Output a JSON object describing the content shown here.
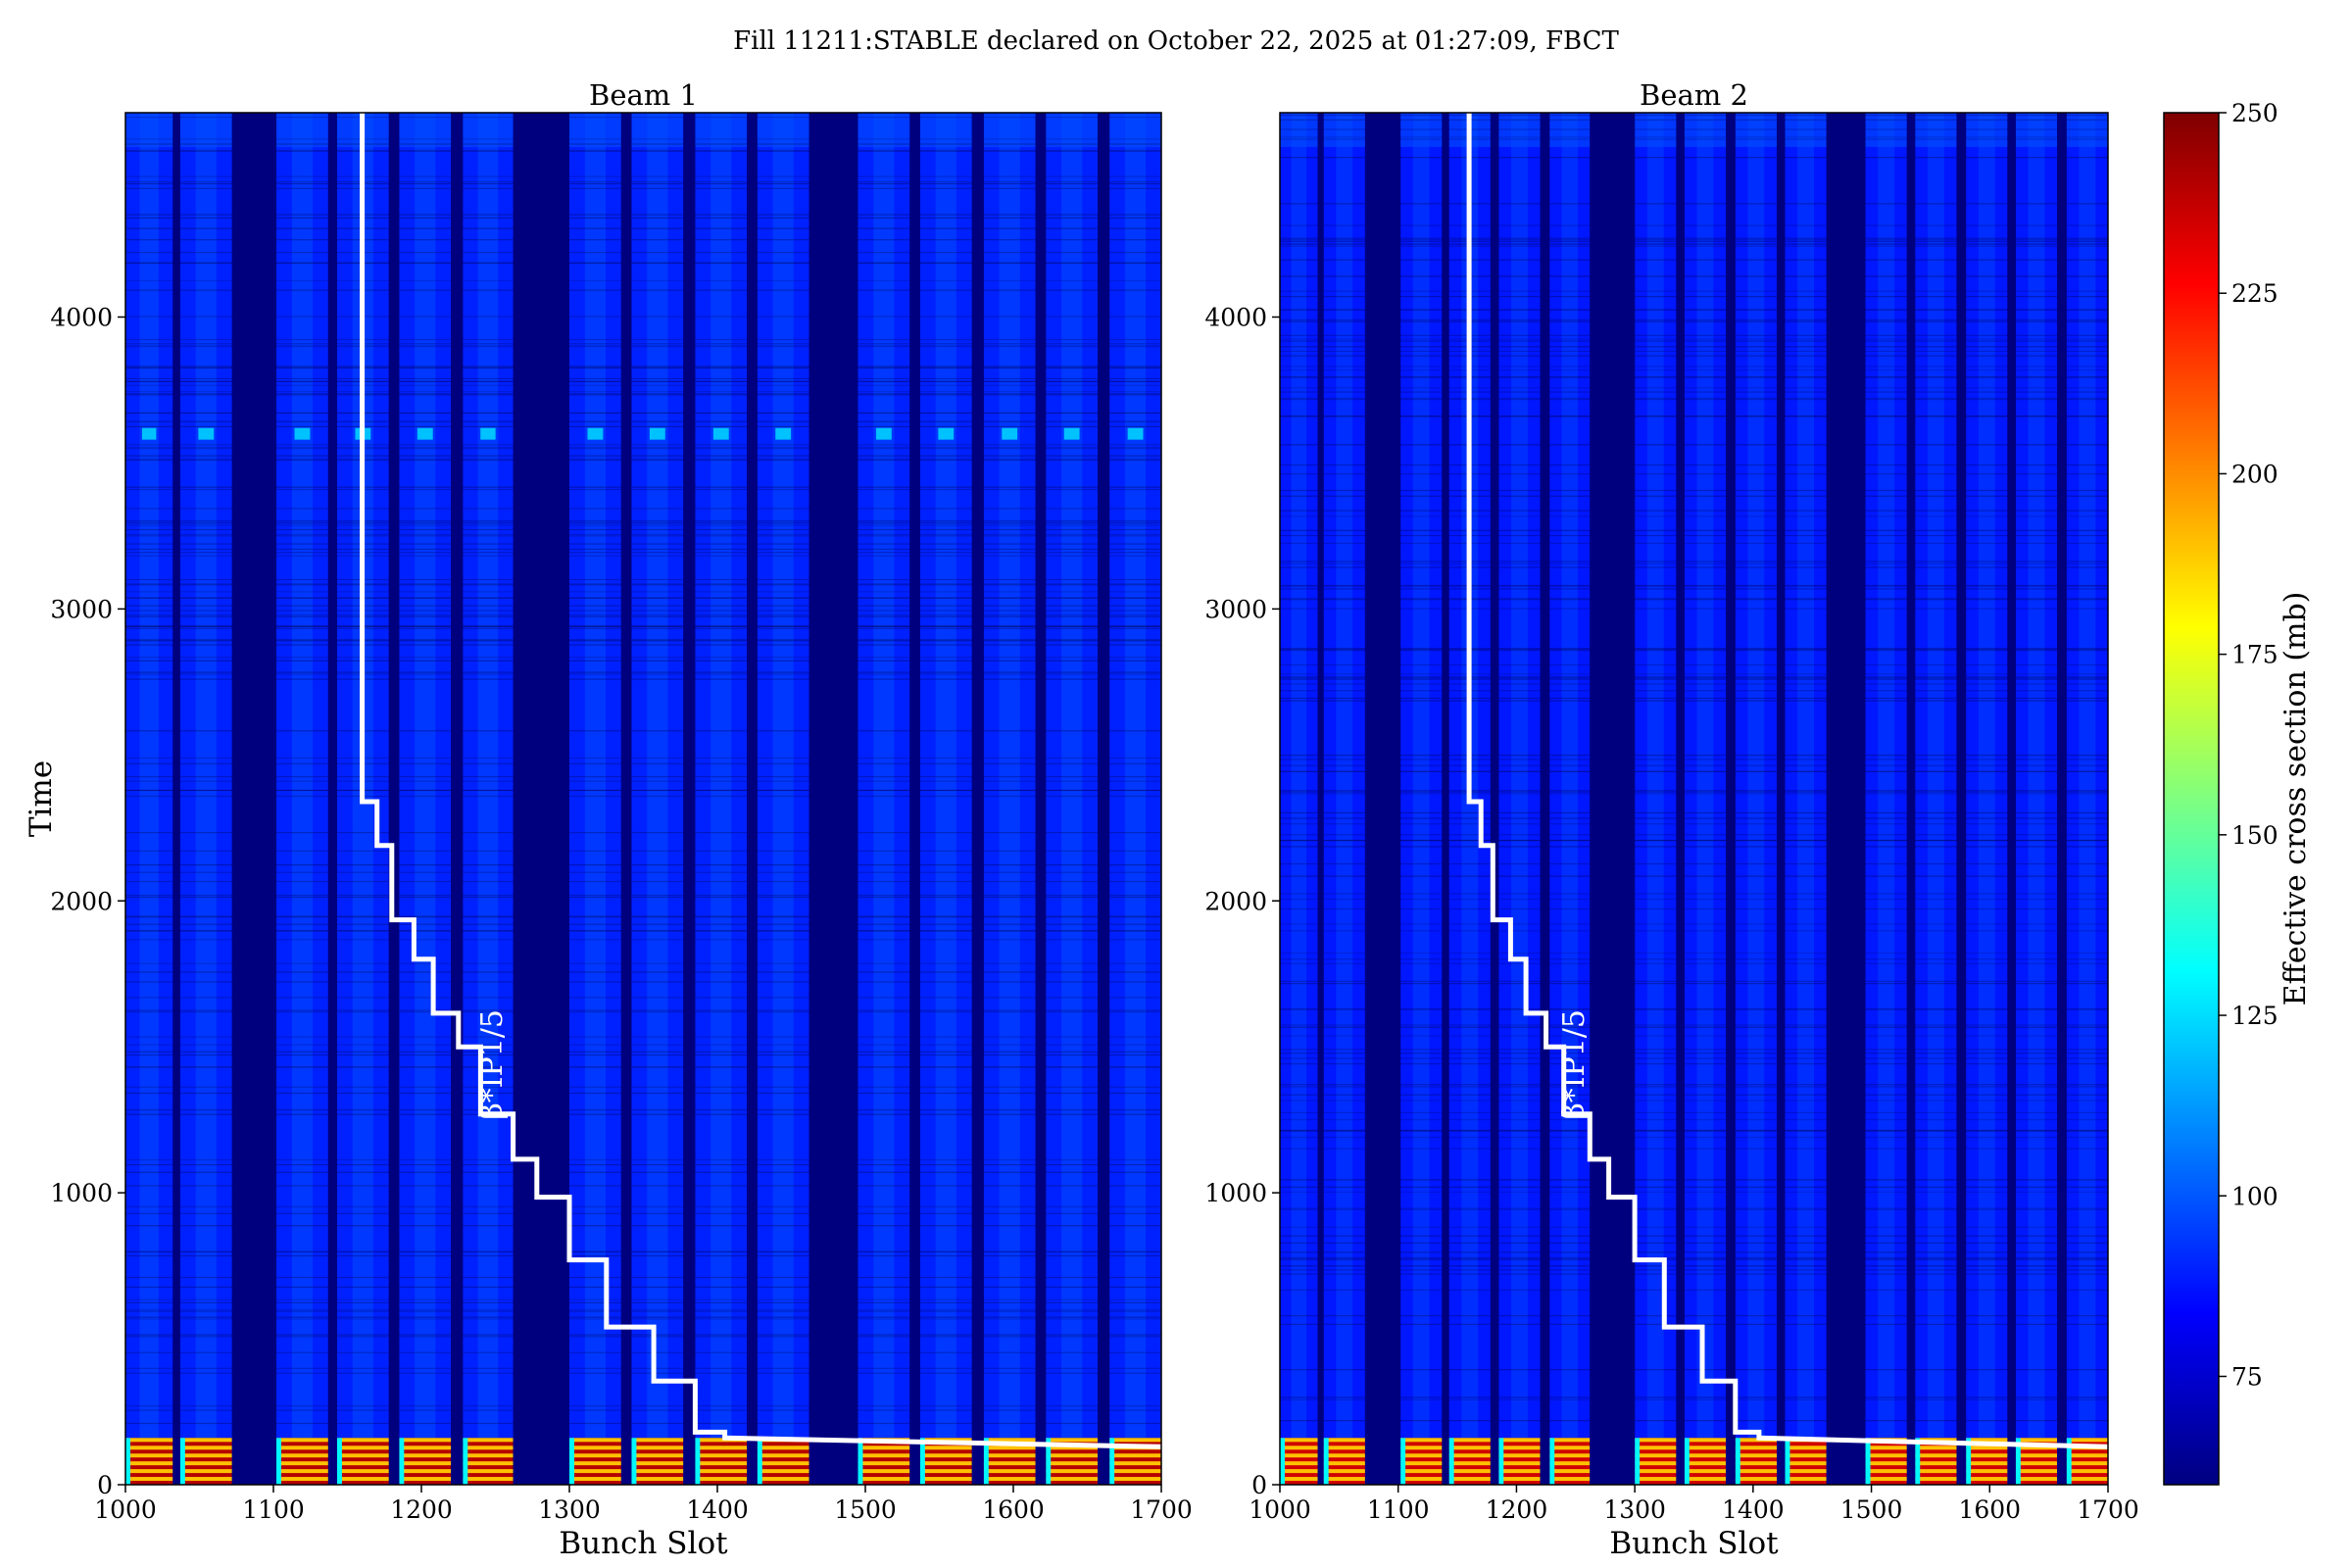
{
  "suptitle": "Fill 11211:STABLE declared on October 22, 2025 at 01:27:09, FBCT",
  "colorbar": {
    "label": "Effective cross section (mb)",
    "ticks": [
      75,
      100,
      125,
      150,
      175,
      200,
      225,
      250
    ],
    "range": [
      60,
      250
    ],
    "colormap": [
      "#00007f",
      "#0000ff",
      "#007fff",
      "#00ffff",
      "#7fff7f",
      "#ffff00",
      "#ff7f00",
      "#ff0000",
      "#7f0000"
    ]
  },
  "chart_data": [
    {
      "type": "heatmap",
      "title": "Beam 1",
      "xlabel": "Bunch Slot",
      "ylabel": "Time",
      "xlim": [
        1000,
        1700
      ],
      "ylim": [
        0,
        4700
      ],
      "xticks": [
        1000,
        1100,
        1200,
        1300,
        1400,
        1500,
        1600,
        1700
      ],
      "yticks": [
        0,
        1000,
        2000,
        3000,
        4000
      ],
      "filled_trains": [
        [
          1000,
          1032
        ],
        [
          1037,
          1072
        ],
        [
          1102,
          1137
        ],
        [
          1143,
          1178
        ],
        [
          1185,
          1220
        ],
        [
          1228,
          1262
        ],
        [
          1300,
          1335
        ],
        [
          1342,
          1377
        ],
        [
          1385,
          1420
        ],
        [
          1427,
          1462
        ],
        [
          1495,
          1530
        ],
        [
          1537,
          1572
        ],
        [
          1580,
          1615
        ],
        [
          1622,
          1657
        ],
        [
          1665,
          1700
        ]
      ],
      "empty_background_mb": 60,
      "stable_level_mb": 90,
      "bright_band_time": [
        3580,
        3620
      ],
      "early_high_mb": 240,
      "early_high_time_end": 160,
      "overlay_label": "β*IP1/5",
      "overlay_line": {
        "x": [
          1160,
          1160,
          1170,
          1170,
          1180,
          1180,
          1195,
          1195,
          1208,
          1208,
          1225,
          1225,
          1240,
          1240,
          1262,
          1262,
          1278,
          1278,
          1300,
          1300,
          1325,
          1325,
          1357,
          1357,
          1385,
          1385,
          1405,
          1405,
          1700
        ],
        "y": [
          4700,
          2340,
          2340,
          2190,
          2190,
          1935,
          1935,
          1800,
          1800,
          1615,
          1615,
          1500,
          1500,
          1270,
          1270,
          1115,
          1115,
          985,
          985,
          770,
          770,
          540,
          540,
          355,
          355,
          180,
          180,
          160,
          130
        ]
      }
    },
    {
      "type": "heatmap",
      "title": "Beam 2",
      "xlabel": "Bunch Slot",
      "ylabel": "",
      "xlim": [
        1000,
        1700
      ],
      "ylim": [
        0,
        4700
      ],
      "xticks": [
        1000,
        1100,
        1200,
        1300,
        1400,
        1500,
        1600,
        1700
      ],
      "yticks": [
        0,
        1000,
        2000,
        3000,
        4000
      ],
      "filled_trains": [
        [
          1000,
          1032
        ],
        [
          1037,
          1072
        ],
        [
          1102,
          1137
        ],
        [
          1143,
          1178
        ],
        [
          1185,
          1220
        ],
        [
          1228,
          1262
        ],
        [
          1300,
          1335
        ],
        [
          1342,
          1377
        ],
        [
          1385,
          1420
        ],
        [
          1427,
          1462
        ],
        [
          1495,
          1530
        ],
        [
          1537,
          1572
        ],
        [
          1580,
          1615
        ],
        [
          1622,
          1657
        ],
        [
          1665,
          1700
        ]
      ],
      "empty_background_mb": 60,
      "stable_level_mb": 88,
      "early_high_mb": 235,
      "early_high_time_end": 160,
      "overlay_label": "β*IP1/5",
      "overlay_line": {
        "x": [
          1160,
          1160,
          1170,
          1170,
          1180,
          1180,
          1195,
          1195,
          1208,
          1208,
          1225,
          1225,
          1240,
          1240,
          1262,
          1262,
          1278,
          1278,
          1300,
          1300,
          1325,
          1325,
          1357,
          1357,
          1385,
          1385,
          1405,
          1405,
          1700
        ],
        "y": [
          4700,
          2340,
          2340,
          2190,
          2190,
          1935,
          1935,
          1800,
          1800,
          1615,
          1615,
          1500,
          1500,
          1270,
          1270,
          1115,
          1115,
          985,
          985,
          770,
          770,
          540,
          540,
          355,
          355,
          180,
          180,
          160,
          130
        ]
      }
    }
  ]
}
